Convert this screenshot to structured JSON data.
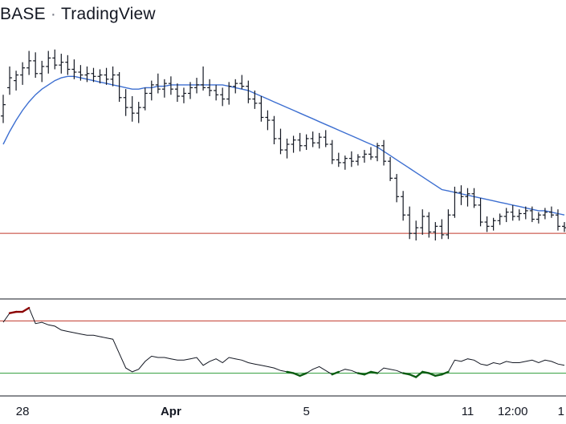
{
  "header": {
    "symbol": "BASE",
    "separator": "·",
    "brand": "TradingView"
  },
  "colors": {
    "candle": "#131722",
    "ma_line": "#3d6fd1",
    "support_line": "#c0392b",
    "rsi_line": "#131722",
    "rsi_overbought_line": "#c0392b",
    "rsi_oversold_line": "#2e9d3a",
    "rsi_overbought_highlight": "#8b0000",
    "rsi_oversold_highlight": "#0c5c12",
    "panel_border": "#131722"
  },
  "chart_data": [
    {
      "type": "ohlc",
      "panel": "price",
      "x_ticks": [
        "28",
        "Apr",
        "5",
        "11",
        "12:00",
        "1"
      ],
      "bold_ticks": [
        "Apr"
      ],
      "series": [
        {
          "kind": "ohlc",
          "values": [
            [
              96.0,
              97.5,
              95.5,
              96.8
            ],
            [
              98.0,
              99.5,
              97.5,
              98.7
            ],
            [
              98.5,
              99.2,
              97.8,
              98.9
            ],
            [
              98.9,
              99.8,
              98.2,
              99.4
            ],
            [
              99.4,
              100.6,
              98.9,
              99.9
            ],
            [
              99.9,
              100.5,
              98.7,
              99.0
            ],
            [
              99.0,
              99.9,
              98.4,
              99.5
            ],
            [
              99.5,
              100.6,
              99.0,
              100.1
            ],
            [
              100.1,
              100.7,
              99.3,
              99.6
            ],
            [
              99.6,
              100.4,
              99.0,
              99.8
            ],
            [
              99.8,
              100.3,
              98.9,
              99.3
            ],
            [
              99.3,
              100.0,
              98.6,
              99.1
            ],
            [
              99.1,
              99.6,
              98.5,
              98.9
            ],
            [
              98.9,
              99.5,
              98.4,
              99.0
            ],
            [
              99.0,
              99.4,
              98.4,
              98.8
            ],
            [
              98.8,
              99.3,
              98.3,
              98.9
            ],
            [
              98.9,
              99.4,
              98.2,
              98.6
            ],
            [
              98.6,
              99.5,
              98.1,
              98.9
            ],
            [
              98.9,
              99.1,
              97.0,
              97.3
            ],
            [
              97.3,
              97.9,
              96.0,
              96.6
            ],
            [
              96.6,
              97.4,
              95.6,
              96.2
            ],
            [
              96.2,
              97.0,
              95.5,
              96.6
            ],
            [
              96.6,
              98.0,
              96.4,
              97.6
            ],
            [
              97.6,
              98.5,
              97.1,
              98.2
            ],
            [
              98.2,
              99.0,
              97.6,
              97.9
            ],
            [
              97.9,
              98.6,
              97.3,
              98.3
            ],
            [
              98.3,
              98.8,
              97.5,
              97.9
            ],
            [
              97.9,
              98.3,
              97.0,
              97.4
            ],
            [
              97.4,
              98.0,
              96.9,
              97.6
            ],
            [
              97.6,
              98.4,
              97.2,
              98.0
            ],
            [
              98.0,
              98.7,
              97.6,
              98.2
            ],
            [
              98.2,
              99.5,
              97.8,
              98.0
            ],
            [
              98.0,
              98.6,
              97.4,
              97.8
            ],
            [
              97.8,
              98.2,
              97.1,
              97.5
            ],
            [
              97.5,
              98.0,
              96.7,
              97.2
            ],
            [
              97.2,
              98.4,
              96.8,
              98.1
            ],
            [
              98.1,
              98.6,
              97.6,
              98.3
            ],
            [
              98.3,
              98.9,
              97.9,
              98.1
            ],
            [
              98.1,
              98.5,
              96.9,
              97.2
            ],
            [
              97.2,
              97.8,
              96.5,
              96.9
            ],
            [
              96.9,
              97.4,
              95.6,
              95.9
            ],
            [
              95.9,
              96.4,
              95.0,
              95.7
            ],
            [
              95.7,
              96.0,
              94.0,
              94.4
            ],
            [
              94.4,
              95.1,
              93.3,
              93.6
            ],
            [
              93.6,
              94.4,
              93.0,
              94.0
            ],
            [
              94.0,
              94.6,
              93.4,
              94.3
            ],
            [
              94.3,
              94.8,
              93.5,
              93.9
            ],
            [
              93.9,
              94.7,
              93.6,
              94.4
            ],
            [
              94.4,
              94.9,
              93.8,
              94.1
            ],
            [
              94.1,
              94.8,
              93.7,
              94.5
            ],
            [
              94.5,
              95.0,
              93.8,
              94.0
            ],
            [
              94.0,
              94.3,
              92.6,
              92.9
            ],
            [
              92.9,
              93.4,
              92.4,
              92.7
            ],
            [
              92.7,
              93.2,
              92.2,
              93.0
            ],
            [
              93.0,
              93.5,
              92.4,
              92.8
            ],
            [
              92.8,
              93.3,
              92.5,
              93.1
            ],
            [
              93.1,
              93.6,
              92.7,
              93.3
            ],
            [
              93.3,
              93.8,
              92.9,
              93.1
            ],
            [
              93.1,
              94.1,
              92.8,
              93.9
            ],
            [
              93.9,
              94.3,
              92.5,
              92.8
            ],
            [
              92.8,
              93.1,
              91.4,
              91.6
            ],
            [
              91.6,
              91.9,
              89.9,
              90.3
            ],
            [
              90.3,
              90.7,
              88.6,
              89.0
            ],
            [
              89.0,
              89.6,
              87.3,
              87.7
            ],
            [
              87.7,
              88.6,
              87.2,
              88.1
            ],
            [
              88.1,
              89.4,
              87.6,
              88.9
            ],
            [
              88.9,
              89.2,
              87.4,
              87.8
            ],
            [
              87.8,
              88.5,
              87.2,
              88.2
            ],
            [
              88.2,
              88.7,
              87.3,
              87.6
            ],
            [
              87.6,
              89.4,
              87.3,
              89.0
            ],
            [
              89.0,
              91.0,
              88.8,
              90.6
            ],
            [
              90.6,
              91.1,
              89.7,
              90.3
            ],
            [
              90.3,
              90.9,
              89.6,
              90.5
            ],
            [
              90.5,
              90.9,
              89.5,
              89.7
            ],
            [
              89.7,
              90.2,
              88.2,
              88.5
            ],
            [
              88.5,
              88.9,
              87.8,
              88.2
            ],
            [
              88.2,
              88.8,
              87.9,
              88.6
            ],
            [
              88.6,
              89.1,
              88.3,
              88.9
            ],
            [
              88.9,
              89.5,
              88.5,
              89.2
            ],
            [
              89.2,
              89.7,
              88.6,
              88.9
            ],
            [
              88.9,
              89.4,
              88.6,
              89.1
            ],
            [
              89.1,
              89.6,
              88.7,
              89.3
            ],
            [
              89.3,
              89.6,
              88.5,
              88.7
            ],
            [
              88.7,
              89.2,
              88.4,
              89.0
            ],
            [
              89.0,
              89.5,
              88.7,
              89.2
            ],
            [
              89.2,
              89.6,
              88.8,
              89.0
            ],
            [
              89.0,
              89.4,
              87.9,
              88.2
            ],
            [
              88.2,
              88.5,
              87.8,
              88.1
            ]
          ]
        },
        {
          "kind": "moving_average",
          "values": [
            94.0,
            94.9,
            95.7,
            96.4,
            97.0,
            97.5,
            97.9,
            98.2,
            98.5,
            98.7,
            98.8,
            98.8,
            98.7,
            98.6,
            98.5,
            98.4,
            98.3,
            98.2,
            98.1,
            98.0,
            97.9,
            97.9,
            98.0,
            98.0,
            98.1,
            98.1,
            98.2,
            98.2,
            98.2,
            98.2,
            98.2,
            98.2,
            98.2,
            98.2,
            98.2,
            98.1,
            98.0,
            97.9,
            97.8,
            97.6,
            97.4,
            97.2,
            97.0,
            96.8,
            96.6,
            96.4,
            96.2,
            96.0,
            95.8,
            95.6,
            95.4,
            95.2,
            95.0,
            94.8,
            94.6,
            94.4,
            94.2,
            94.0,
            93.8,
            93.5,
            93.2,
            92.9,
            92.6,
            92.3,
            92.0,
            91.7,
            91.4,
            91.1,
            90.8,
            90.7,
            90.6,
            90.5,
            90.4,
            90.3,
            90.2,
            90.1,
            90.0,
            89.9,
            89.8,
            89.7,
            89.6,
            89.5,
            89.4,
            89.3,
            89.3,
            89.2,
            89.1,
            89.0
          ]
        }
      ],
      "support_level": 87.7,
      "ylim": [
        85.5,
        102.5
      ]
    },
    {
      "type": "line",
      "panel": "rsi",
      "overbought": 70,
      "oversold": 30,
      "ylim": [
        15,
        85
      ],
      "values": [
        69,
        76,
        77,
        77,
        80,
        68,
        69,
        67,
        66,
        63,
        62,
        61,
        60,
        59,
        59,
        58,
        57,
        56,
        45,
        34,
        31,
        33,
        39,
        43,
        42,
        42,
        41,
        40,
        40,
        41,
        42,
        36,
        39,
        41,
        38,
        42,
        41,
        40,
        38,
        37,
        36,
        35,
        34,
        32,
        31,
        30,
        28,
        30,
        33,
        35,
        32,
        29,
        31,
        33,
        32,
        30,
        29,
        31,
        30,
        34,
        33,
        32,
        30,
        29,
        27,
        31,
        30,
        28,
        29,
        31,
        40,
        39,
        41,
        40,
        37,
        36,
        38,
        37,
        39,
        38,
        38,
        39,
        40,
        38,
        40,
        39,
        37,
        36
      ]
    }
  ]
}
